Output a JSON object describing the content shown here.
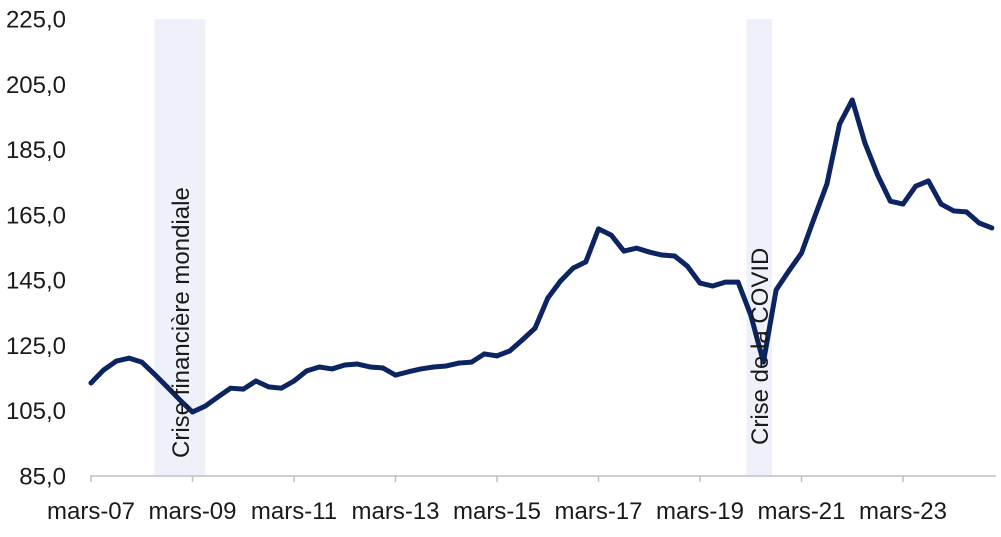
{
  "chart_data": {
    "type": "line",
    "ylim": [
      85,
      225
    ],
    "y_ticks": [
      85,
      105,
      125,
      145,
      165,
      185,
      205,
      225
    ],
    "y_tick_labels": [
      "85,0",
      "105,0",
      "125,0",
      "145,0",
      "165,0",
      "185,0",
      "205,0",
      "225,0"
    ],
    "x_ticks": [
      {
        "date": "2007-03",
        "label": "mars-07"
      },
      {
        "date": "2009-03",
        "label": "mars-09"
      },
      {
        "date": "2011-03",
        "label": "mars-11"
      },
      {
        "date": "2013-03",
        "label": "mars-13"
      },
      {
        "date": "2015-03",
        "label": "mars-15"
      },
      {
        "date": "2017-03",
        "label": "mars-17"
      },
      {
        "date": "2019-03",
        "label": "mars-19"
      },
      {
        "date": "2021-03",
        "label": "mars-21"
      },
      {
        "date": "2023-03",
        "label": "mars-23"
      }
    ],
    "grid": false,
    "legend": false,
    "axis_color": "#bfbfbf",
    "series": [
      {
        "color": "#0c2461",
        "x": [
          "2007-03",
          "2007-06",
          "2007-09",
          "2007-12",
          "2008-03",
          "2008-06",
          "2008-09",
          "2008-12",
          "2009-03",
          "2009-06",
          "2009-09",
          "2009-12",
          "2010-03",
          "2010-06",
          "2010-09",
          "2010-12",
          "2011-03",
          "2011-06",
          "2011-09",
          "2011-12",
          "2012-03",
          "2012-06",
          "2012-09",
          "2012-12",
          "2013-03",
          "2013-06",
          "2013-09",
          "2013-12",
          "2014-03",
          "2014-06",
          "2014-09",
          "2014-12",
          "2015-03",
          "2015-06",
          "2015-09",
          "2015-12",
          "2016-03",
          "2016-06",
          "2016-09",
          "2016-12",
          "2017-03",
          "2017-06",
          "2017-09",
          "2017-12",
          "2018-03",
          "2018-06",
          "2018-09",
          "2018-12",
          "2019-03",
          "2019-06",
          "2019-09",
          "2019-12",
          "2020-03",
          "2020-06",
          "2020-09",
          "2020-12",
          "2021-03",
          "2021-06",
          "2021-09",
          "2021-12",
          "2022-03",
          "2022-06",
          "2022-09",
          "2022-12",
          "2023-03",
          "2023-06",
          "2023-09",
          "2023-12",
          "2024-03",
          "2024-06",
          "2024-09",
          "2024-12"
        ],
        "y": [
          113.5,
          117.5,
          120.2,
          121.1,
          119.9,
          116.2,
          112.3,
          108.3,
          104.6,
          106.4,
          109.2,
          111.9,
          111.6,
          114.1,
          112.3,
          111.9,
          114.1,
          117.2,
          118.4,
          117.8,
          119.0,
          119.3,
          118.4,
          118.1,
          115.9,
          116.9,
          117.8,
          118.4,
          118.7,
          119.6,
          119.9,
          122.4,
          121.8,
          123.3,
          126.7,
          130.3,
          139.5,
          144.7,
          148.7,
          150.6,
          160.7,
          158.8,
          153.9,
          154.8,
          153.6,
          152.7,
          152.4,
          149.3,
          144.1,
          143.2,
          144.4,
          144.4,
          134.3,
          119.9,
          142.0,
          147.8,
          153.3,
          164.0,
          174.4,
          192.8,
          200.2,
          187.0,
          177.2,
          169.2,
          168.3,
          173.8,
          175.4,
          168.3,
          166.2,
          165.9,
          162.5,
          161.0
        ]
      }
    ],
    "shaded_periods": [
      {
        "label": "Crise financière mondiale",
        "start": "2008-06",
        "end": "2009-06",
        "color": "#eef1f9"
      },
      {
        "label": "Crise de la COVID",
        "start": "2020-02",
        "end": "2020-08",
        "color": "#eef1f9"
      }
    ]
  }
}
